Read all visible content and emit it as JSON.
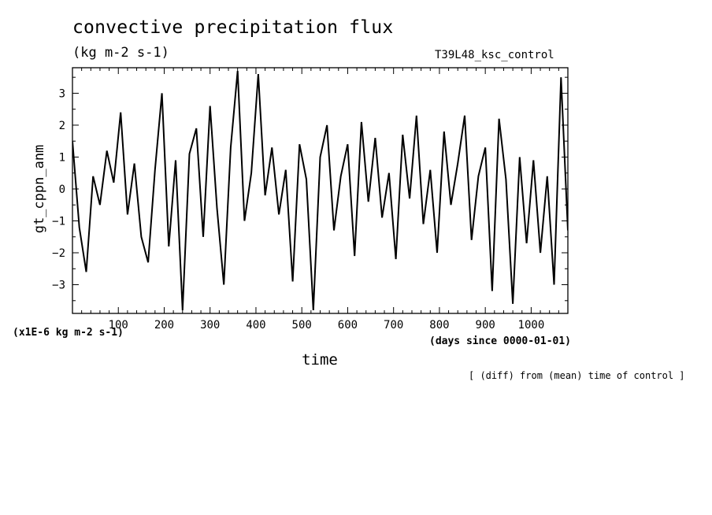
{
  "header": {
    "title": "convective precipitation flux",
    "units": "(kg m-2 s-1)",
    "run": "T39L48_ksc_control"
  },
  "footer": {
    "scale_note": "(x1E-6 kg m-2 s-1)",
    "x_units": "(days since 0000-01-01)",
    "diff_note": "[ (diff) from (mean) time of control ]"
  },
  "chart_data": {
    "type": "line",
    "title": "convective precipitation flux",
    "subtitle": "(kg m-2 s-1)",
    "xlabel": "time",
    "ylabel": "gt_cppn_anm",
    "x_units": "days since 0000-01-01",
    "y_scale_note": "x1E-6 kg m-2 s-1",
    "xlim": [
      0,
      1080
    ],
    "ylim": [
      -3.9,
      3.8
    ],
    "x_ticks": [
      100,
      200,
      300,
      400,
      500,
      600,
      700,
      800,
      900,
      1000
    ],
    "y_ticks": [
      -3,
      -2,
      -1,
      0,
      1,
      2,
      3
    ],
    "grid": false,
    "line_color": "#000000",
    "series": [
      {
        "x": [
          0,
          15,
          30,
          45,
          60,
          75,
          90,
          105,
          120,
          135,
          150,
          165,
          180,
          195,
          210,
          225,
          240,
          255,
          270,
          285,
          300,
          315,
          330,
          345,
          360,
          375,
          390,
          405,
          420,
          435,
          450,
          465,
          480,
          495,
          510,
          525,
          540,
          555,
          570,
          585,
          600,
          615,
          630,
          645,
          660,
          675,
          690,
          705,
          720,
          735,
          750,
          765,
          780,
          795,
          810,
          825,
          840,
          855,
          870,
          885,
          900,
          915,
          930,
          945,
          960,
          975,
          990,
          1005,
          1020,
          1035,
          1050,
          1065,
          1080
        ],
        "y": [
          1.5,
          -1.2,
          -2.6,
          0.4,
          -0.5,
          1.2,
          0.2,
          2.4,
          -0.8,
          0.8,
          -1.5,
          -2.3,
          0.6,
          3.0,
          -1.8,
          0.9,
          -3.8,
          1.1,
          1.9,
          -1.5,
          2.6,
          -0.6,
          -3.0,
          1.3,
          3.7,
          -1.0,
          0.5,
          3.6,
          -0.2,
          1.3,
          -0.8,
          0.6,
          -2.9,
          1.4,
          0.3,
          -3.8,
          1.0,
          2.0,
          -1.3,
          0.4,
          1.4,
          -2.1,
          2.1,
          -0.4,
          1.6,
          -0.9,
          0.5,
          -2.2,
          1.7,
          -0.3,
          2.3,
          -1.1,
          0.6,
          -2.0,
          1.8,
          -0.5,
          0.8,
          2.3,
          -1.6,
          0.4,
          1.3,
          -3.2,
          2.2,
          0.3,
          -3.6,
          1.0,
          -1.7,
          0.9,
          -2.0,
          0.4,
          -3.0,
          3.5,
          -1.3
        ]
      }
    ]
  }
}
